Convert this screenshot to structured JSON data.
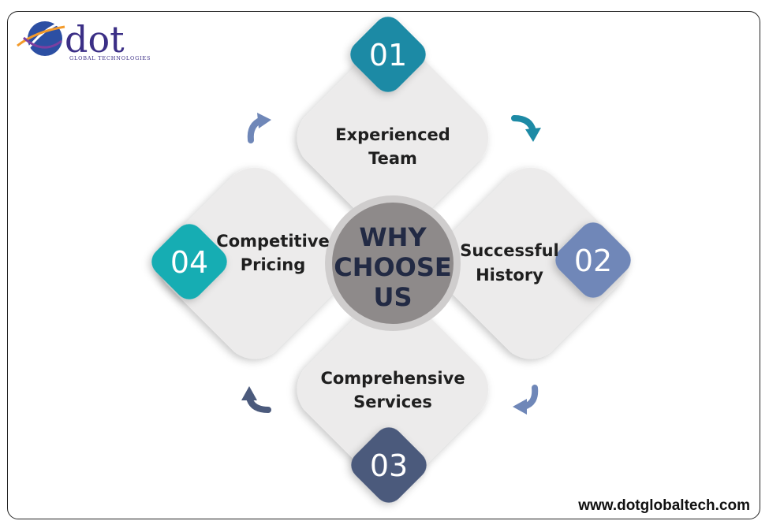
{
  "logo": {
    "word": "dot",
    "subtitle": "GLOBAL TECHNOLOGIES"
  },
  "center": {
    "line1": "WHY",
    "line2": "CHOOSE",
    "line3": "US"
  },
  "items": [
    {
      "number": "01",
      "line1": "Experienced",
      "line2": "Team",
      "color": "#1d8aa5"
    },
    {
      "number": "02",
      "line1": "Successful",
      "line2": "History",
      "color": "#6f87b8"
    },
    {
      "number": "03",
      "line1": "Comprehensive",
      "line2": "Services",
      "color": "#4b5a7c"
    },
    {
      "number": "04",
      "line1": "Competitive",
      "line2": "Pricing",
      "color": "#19adb3"
    }
  ],
  "colors": {
    "card": "#ecebeb",
    "center_circle": "#8e8a8a",
    "center_ring": "#cfcdcd"
  },
  "website": "www.dotglobaltech.com"
}
